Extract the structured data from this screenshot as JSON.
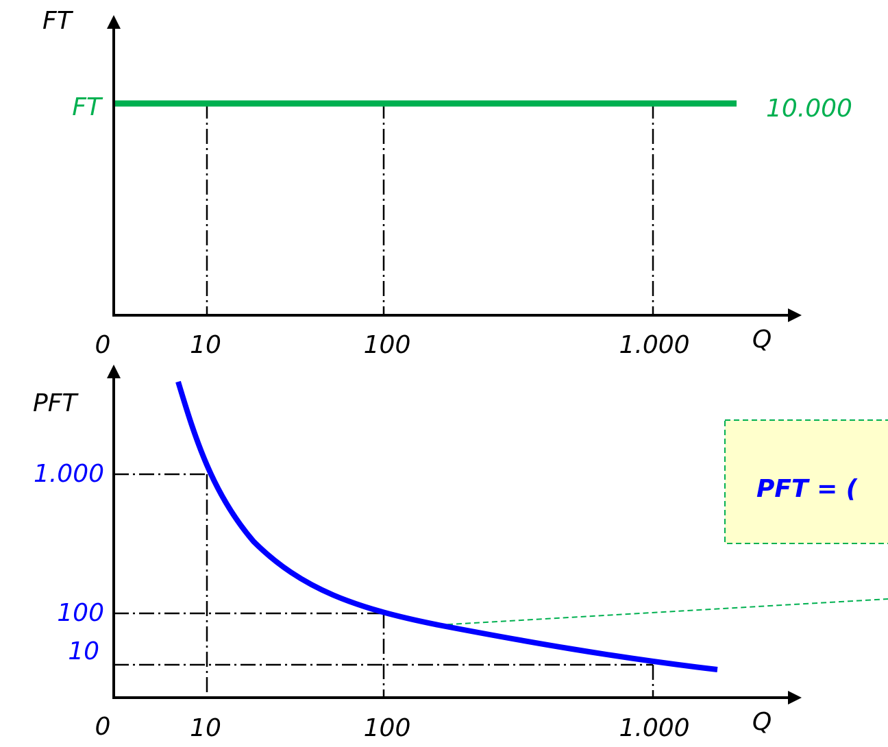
{
  "top_chart": {
    "y_axis_label": "FT",
    "x_axis_label": "Q",
    "line_label": "FT",
    "line_value": "10.000",
    "origin": "0",
    "x_labels": [
      "10",
      "100",
      "1.000"
    ]
  },
  "bottom_chart": {
    "y_axis_label": "PFT",
    "x_axis_label": "Q",
    "origin": "0",
    "x_labels": [
      "10",
      "100",
      "1.000"
    ],
    "y_labels": [
      "1.000",
      "100",
      "10"
    ]
  },
  "formula_box": {
    "text": "PFT = ("
  }
}
